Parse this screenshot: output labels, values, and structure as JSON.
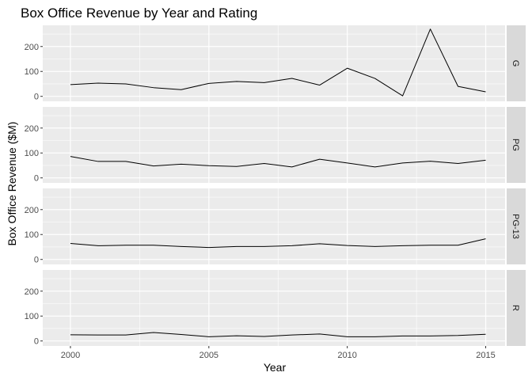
{
  "chart_data": {
    "type": "line",
    "title": "Box Office Revenue by Year and Rating",
    "xlabel": "Year",
    "ylabel": "Box Office Revenue ($M)",
    "x": [
      2000,
      2001,
      2002,
      2003,
      2004,
      2005,
      2006,
      2007,
      2008,
      2009,
      2010,
      2011,
      2012,
      2013,
      2014,
      2015
    ],
    "xlim": [
      1999.0,
      2015.7
    ],
    "ylim": [
      -20,
      285
    ],
    "xticks": [
      2000,
      2005,
      2010,
      2015
    ],
    "yticks": [
      0,
      100,
      200
    ],
    "line_color": "#000000",
    "panel_background": "#ebebeb",
    "strip_background": "#d9d9d9",
    "grid": true,
    "facets": [
      {
        "label": "G",
        "values": [
          47,
          53,
          50,
          35,
          27,
          52,
          60,
          55,
          72,
          45,
          113,
          72,
          2,
          270,
          40,
          18
        ]
      },
      {
        "label": "PG",
        "values": [
          86,
          66,
          66,
          48,
          55,
          49,
          46,
          58,
          44,
          75,
          60,
          44,
          60,
          67,
          58,
          71
        ]
      },
      {
        "label": "PG-13",
        "values": [
          64,
          55,
          57,
          57,
          52,
          48,
          52,
          52,
          55,
          63,
          56,
          52,
          55,
          57,
          57,
          83
        ]
      },
      {
        "label": "R",
        "values": [
          25,
          24,
          24,
          34,
          26,
          17,
          21,
          18,
          24,
          28,
          17,
          17,
          20,
          20,
          22,
          27
        ]
      }
    ]
  }
}
